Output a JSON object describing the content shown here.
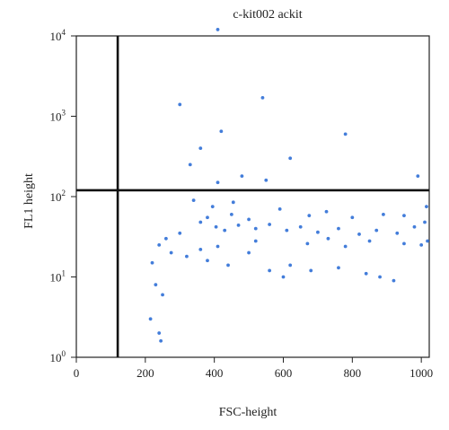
{
  "chart_data": {
    "type": "scatter",
    "title": "c-kit002 ackit",
    "xlabel": "FSC-height",
    "ylabel": "FL1 height",
    "xlim": [
      0,
      1023
    ],
    "ylim": [
      1,
      10000
    ],
    "y_scale": "log",
    "x_ticks": [
      "0",
      "200",
      "400",
      "600",
      "800",
      "1000"
    ],
    "x_tick_values": [
      0,
      200,
      400,
      600,
      800,
      1000
    ],
    "y_ticks": [
      {
        "base": "10",
        "exp": "0",
        "value": 1
      },
      {
        "base": "10",
        "exp": "1",
        "value": 10
      },
      {
        "base": "10",
        "exp": "2",
        "value": 100
      },
      {
        "base": "10",
        "exp": "3",
        "value": 1000
      },
      {
        "base": "10",
        "exp": "4",
        "value": 10000
      }
    ],
    "gate_lines": {
      "vertical_x": 120,
      "horizontal_y": 120
    },
    "grid": false,
    "colors": {
      "points": "#2f6fd6",
      "gate": "#111111",
      "axis": "#222222"
    },
    "series": [
      {
        "points": [
          [
            405,
            42
          ],
          [
            380,
            55
          ],
          [
            430,
            38
          ],
          [
            360,
            48
          ],
          [
            470,
            44
          ],
          [
            520,
            40
          ],
          [
            300,
            35
          ],
          [
            260,
            30
          ],
          [
            450,
            60
          ],
          [
            500,
            52
          ],
          [
            560,
            45
          ],
          [
            610,
            38
          ],
          [
            650,
            42
          ],
          [
            700,
            36
          ],
          [
            760,
            40
          ],
          [
            820,
            34
          ],
          [
            870,
            38
          ],
          [
            930,
            35
          ],
          [
            980,
            42
          ],
          [
            1010,
            48
          ],
          [
            240,
            25
          ],
          [
            220,
            15
          ],
          [
            230,
            8
          ],
          [
            250,
            6
          ],
          [
            215,
            3
          ],
          [
            240,
            2
          ],
          [
            245,
            1.6
          ],
          [
            330,
            250
          ],
          [
            360,
            400
          ],
          [
            420,
            650
          ],
          [
            300,
            1400
          ],
          [
            410,
            12000
          ],
          [
            540,
            1700
          ],
          [
            620,
            300
          ],
          [
            780,
            600
          ],
          [
            990,
            180
          ],
          [
            1015,
            75
          ],
          [
            1018,
            28
          ],
          [
            1000,
            25
          ],
          [
            410,
            150
          ],
          [
            480,
            180
          ],
          [
            550,
            160
          ],
          [
            340,
            90
          ],
          [
            395,
            75
          ],
          [
            455,
            85
          ],
          [
            590,
            70
          ],
          [
            675,
            58
          ],
          [
            725,
            65
          ],
          [
            800,
            55
          ],
          [
            890,
            60
          ],
          [
            950,
            58
          ],
          [
            275,
            20
          ],
          [
            320,
            18
          ],
          [
            380,
            16
          ],
          [
            440,
            14
          ],
          [
            500,
            20
          ],
          [
            560,
            12
          ],
          [
            620,
            14
          ],
          [
            760,
            13
          ],
          [
            840,
            11
          ],
          [
            880,
            10
          ],
          [
            920,
            9
          ],
          [
            680,
            12
          ],
          [
            600,
            10
          ],
          [
            360,
            22
          ],
          [
            410,
            24
          ],
          [
            520,
            28
          ],
          [
            670,
            26
          ],
          [
            730,
            30
          ],
          [
            780,
            24
          ],
          [
            850,
            28
          ],
          [
            950,
            26
          ]
        ]
      }
    ]
  }
}
